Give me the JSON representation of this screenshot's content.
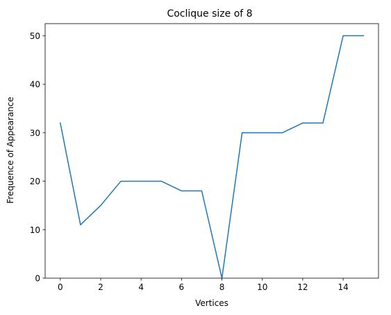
{
  "chart_data": {
    "type": "line",
    "title": "Coclique size of 8",
    "xlabel": "Vertices",
    "ylabel": "Frequence of Appearance",
    "xlim": [
      -0.75,
      15.75
    ],
    "ylim": [
      0,
      52.5
    ],
    "xticks": [
      0,
      2,
      4,
      6,
      8,
      10,
      12,
      14
    ],
    "yticks": [
      0,
      10,
      20,
      30,
      40,
      50
    ],
    "grid": false,
    "series": [
      {
        "color": "#1f77b4",
        "x": [
          0,
          1,
          2,
          3,
          4,
          5,
          6,
          7,
          8,
          9,
          10,
          11,
          12,
          13,
          14,
          15
        ],
        "y": [
          32,
          11,
          15,
          20,
          20,
          20,
          18,
          18,
          0,
          30,
          30,
          30,
          32,
          32,
          50,
          50
        ]
      }
    ]
  }
}
